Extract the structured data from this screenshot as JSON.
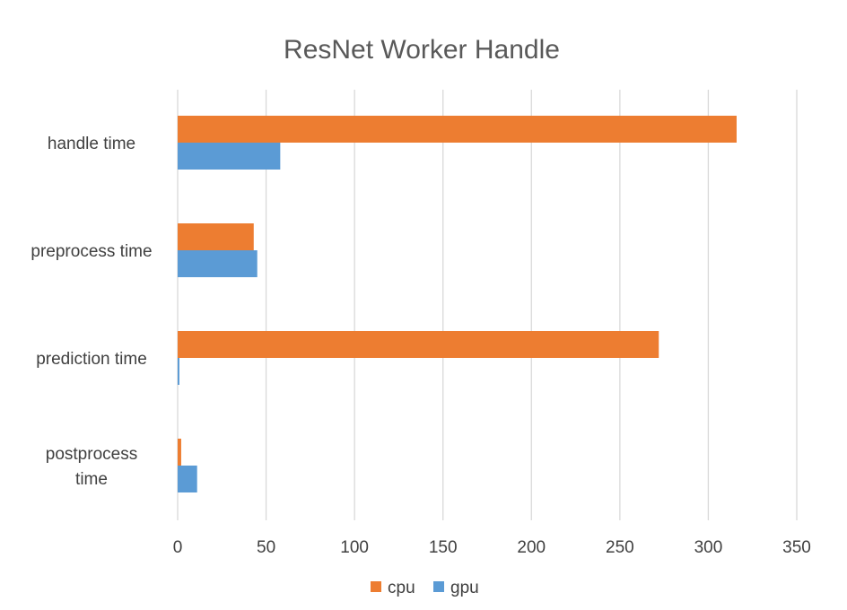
{
  "chart_data": {
    "type": "bar",
    "orientation": "horizontal",
    "title": "ResNet Worker Handle",
    "categories": [
      "handle time",
      "preprocess time",
      "prediction time",
      "postprocess time"
    ],
    "category_lines": [
      [
        "handle time"
      ],
      [
        "preprocess time"
      ],
      [
        "prediction time"
      ],
      [
        "postprocess",
        "time"
      ]
    ],
    "series": [
      {
        "name": "cpu",
        "color": "#ED7D31",
        "values": [
          316,
          43,
          272,
          2
        ]
      },
      {
        "name": "gpu",
        "color": "#5B9BD5",
        "values": [
          58,
          45,
          1,
          11
        ]
      }
    ],
    "xlim": [
      0,
      350
    ],
    "xticks": [
      0,
      50,
      100,
      150,
      200,
      250,
      300,
      350
    ],
    "tick_labels": [
      "0",
      "50",
      "100",
      "150",
      "200",
      "250",
      "300",
      "350"
    ],
    "grid": true,
    "legend_position": "bottom",
    "xlabel": "",
    "ylabel": ""
  }
}
